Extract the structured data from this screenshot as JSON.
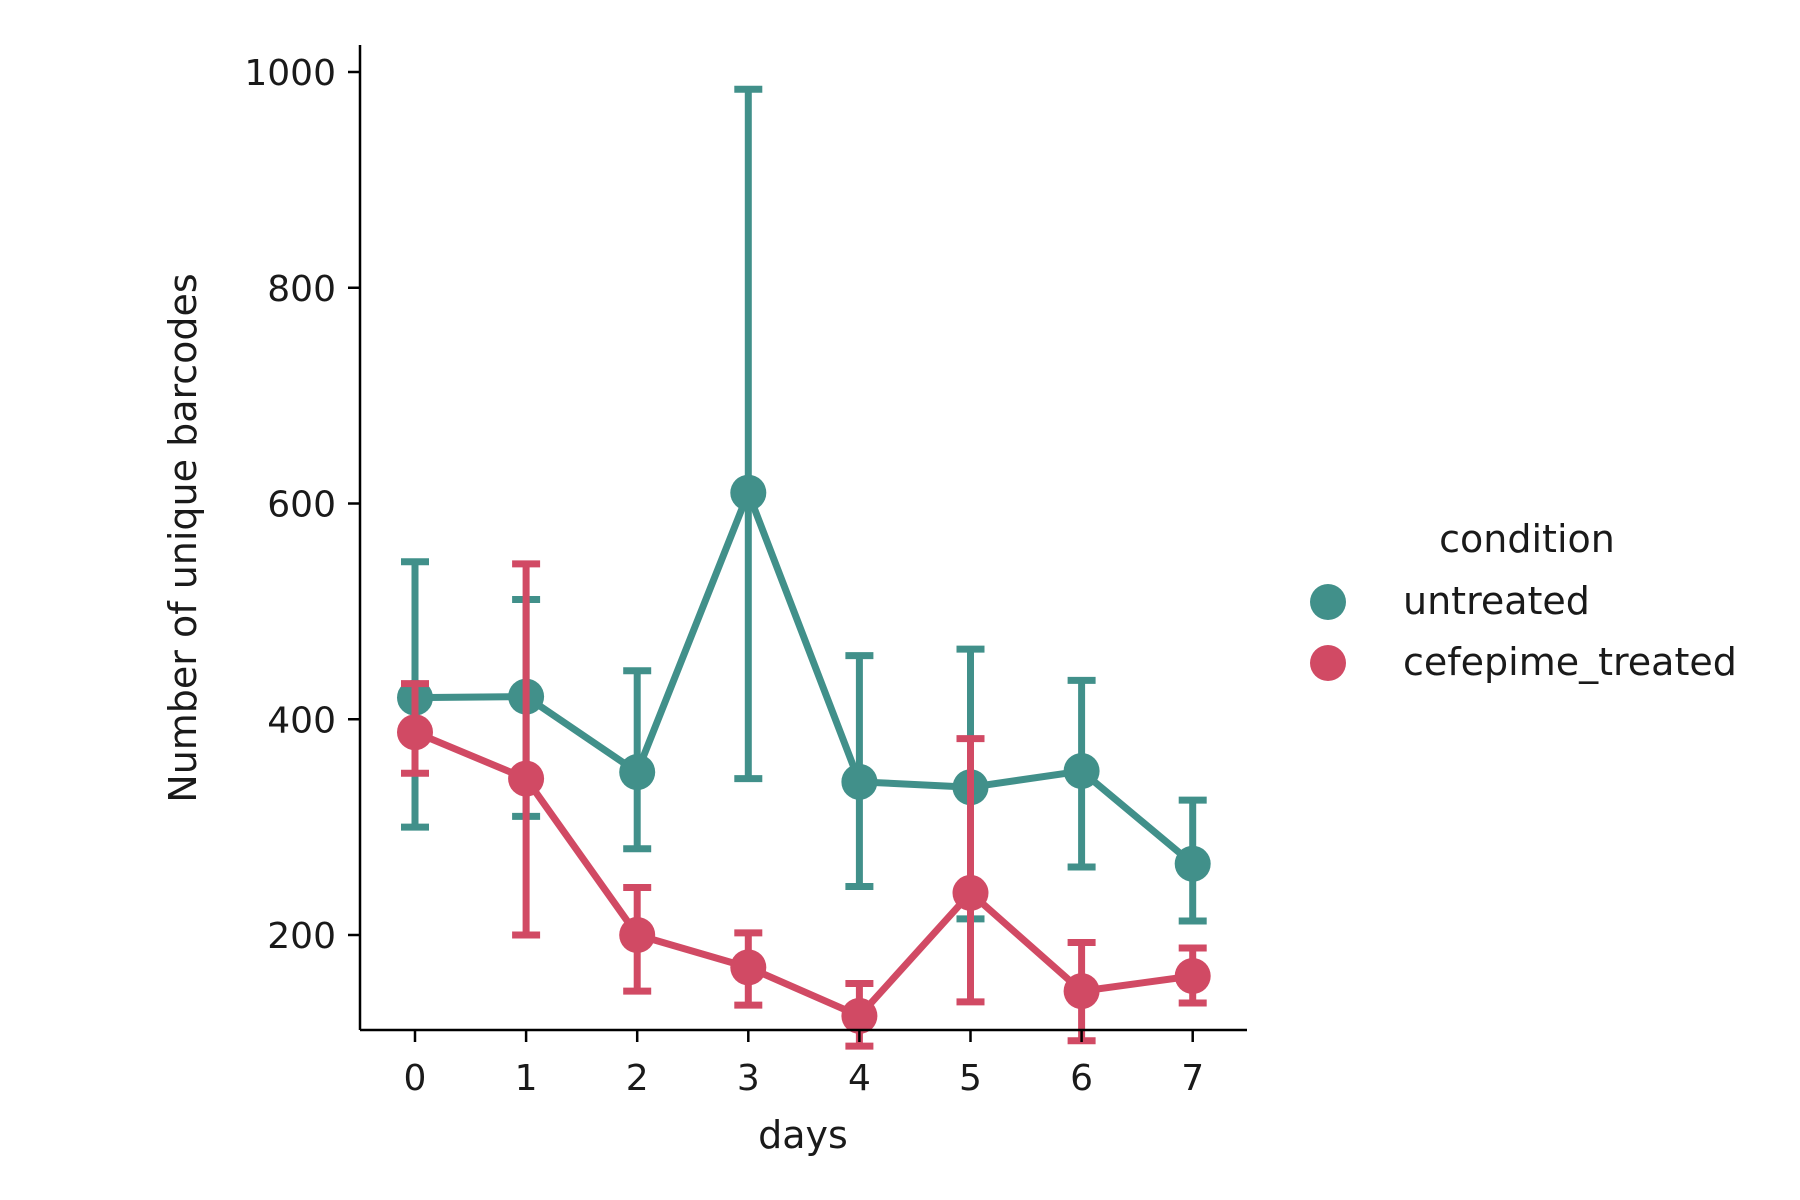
{
  "chart_data": {
    "type": "line",
    "title": "",
    "xlabel": "days",
    "ylabel": "Number of unique barcodes",
    "categories": [
      "0",
      "1",
      "2",
      "3",
      "4",
      "5",
      "6",
      "7"
    ],
    "ylim": [
      70,
      1030
    ],
    "yticks": [
      200,
      400,
      600,
      800,
      1000
    ],
    "grid": false,
    "legend": {
      "title": "condition",
      "placement": "right"
    },
    "series": [
      {
        "name": "untreated",
        "color": "#41908a",
        "values": [
          420,
          421,
          351,
          610,
          342,
          337,
          352,
          266
        ],
        "err_low": [
          300,
          310,
          280,
          345,
          245,
          215,
          263,
          213
        ],
        "err_high": [
          546,
          511,
          445,
          984,
          459,
          465,
          436,
          325
        ]
      },
      {
        "name": "cefepime_treated",
        "color": "#d14a64",
        "values": [
          388,
          345,
          200,
          170,
          125,
          239,
          148,
          162
        ],
        "err_low": [
          350,
          200,
          148,
          135,
          97,
          138,
          102,
          137
        ],
        "err_high": [
          433,
          544,
          244,
          202,
          155,
          382,
          193,
          188
        ]
      }
    ]
  }
}
